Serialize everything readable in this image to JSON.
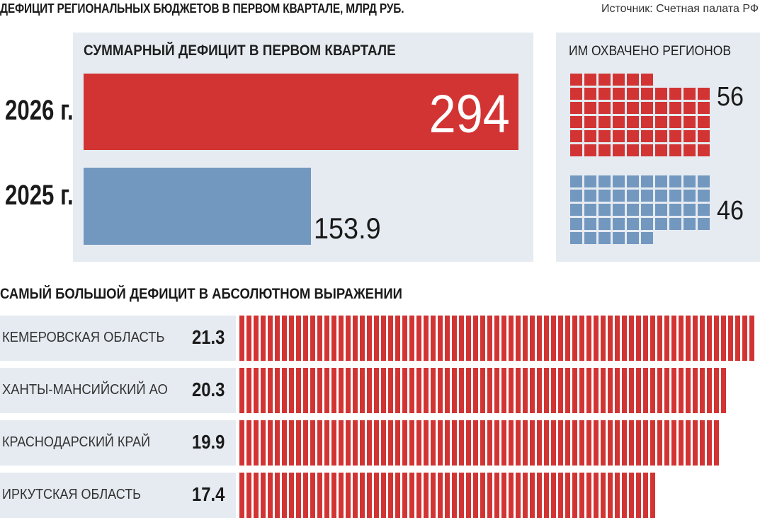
{
  "header": {
    "title": "ДЕФИЦИТ РЕГИОНАЛЬНЫХ БЮДЖЕТОВ В ПЕРВОМ КВАРТАЛЕ, МЛРД РУБ.",
    "source": "Источник: Счетная палата РФ"
  },
  "colors": {
    "red": "#d23434",
    "blue": "#7398bf",
    "panel": "#e6ebf1"
  },
  "chart_data": [
    {
      "type": "bar",
      "title": "СУММАРНЫЙ ДЕФИЦИТ В ПЕРВОМ КВАРТАЛЕ",
      "categories": [
        "2026 г.",
        "2025 г."
      ],
      "values": [
        294,
        153.9
      ],
      "value_labels": [
        "294",
        "153.9"
      ],
      "colors": [
        "#d23434",
        "#7398bf"
      ],
      "orientation": "horizontal",
      "xlim": [
        0,
        294
      ]
    },
    {
      "type": "waffle",
      "title": "ИМ ОХВАЧЕНО РЕГИОНОВ",
      "series": [
        {
          "value": 56,
          "label": "56",
          "color": "#d23434",
          "category": "2026 г."
        },
        {
          "value": 46,
          "label": "46",
          "color": "#7398bf",
          "category": "2025 г."
        }
      ]
    },
    {
      "type": "bar",
      "title": "САМЫЙ БОЛЬШОЙ ДЕФИЦИТ В АБСОЛЮТНОМ ВЫРАЖЕНИИ",
      "orientation": "horizontal",
      "categories": [
        "КЕМЕРОВСКАЯ ОБЛАСТЬ",
        "ХАНТЫ-МАНСИЙСКИЙ АО",
        "КРАСНОДАРСКИЙ КРАЙ",
        "ИРКУТСКАЯ ОБЛАСТЬ"
      ],
      "values": [
        21.3,
        20.3,
        19.9,
        17.4
      ],
      "value_labels": [
        "21.3",
        "20.3",
        "19.9",
        "17.4"
      ],
      "xlim": [
        0,
        21.3
      ],
      "color": "#d23434"
    }
  ]
}
